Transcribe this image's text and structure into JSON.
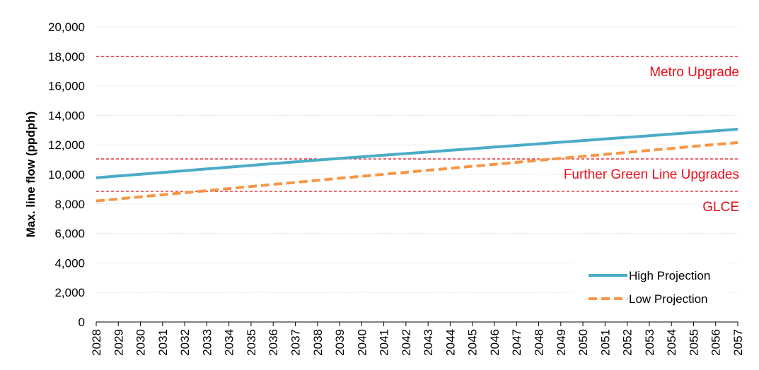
{
  "chart_data": {
    "type": "line",
    "title": "",
    "xlabel": "",
    "ylabel": "Max. line flow (ppdph)",
    "x": [
      2028,
      2029,
      2030,
      2031,
      2032,
      2033,
      2034,
      2035,
      2036,
      2037,
      2038,
      2039,
      2040,
      2041,
      2042,
      2043,
      2044,
      2045,
      2046,
      2047,
      2048,
      2049,
      2050,
      2051,
      2052,
      2053,
      2054,
      2055,
      2056,
      2057
    ],
    "ylim": [
      0,
      20000
    ],
    "yticks": [
      0,
      2000,
      4000,
      6000,
      8000,
      10000,
      12000,
      14000,
      16000,
      18000,
      20000
    ],
    "ytick_labels": [
      "0",
      "2,000",
      "4,000",
      "6,000",
      "8,000",
      "10,000",
      "12,000",
      "14,000",
      "16,000",
      "18,000",
      "20,000"
    ],
    "grid": "horizontal dotted",
    "legend_position": "bottom-right",
    "series": [
      {
        "name": "High Projection",
        "style": "solid",
        "color": "#4BACC6",
        "values": [
          9770,
          9890,
          10010,
          10130,
          10250,
          10370,
          10490,
          10610,
          10730,
          10850,
          10970,
          11080,
          11190,
          11300,
          11410,
          11520,
          11630,
          11740,
          11850,
          11960,
          12070,
          12180,
          12290,
          12400,
          12510,
          12620,
          12730,
          12840,
          12950,
          13060
        ]
      },
      {
        "name": "Low Projection",
        "style": "dashed",
        "color": "#F79646",
        "values": [
          8200,
          8340,
          8480,
          8620,
          8760,
          8900,
          9040,
          9180,
          9320,
          9460,
          9600,
          9740,
          9870,
          10010,
          10140,
          10280,
          10410,
          10550,
          10680,
          10820,
          10950,
          11090,
          11220,
          11360,
          11490,
          11630,
          11760,
          11900,
          12030,
          12160
        ]
      }
    ],
    "thresholds": [
      {
        "label": "Metro Upgrade",
        "value": 18000
      },
      {
        "label": "Further Green Line Upgrades",
        "value": 11050
      },
      {
        "label": "GLCE",
        "value": 8850
      }
    ],
    "threshold_color": "#E8101C"
  }
}
